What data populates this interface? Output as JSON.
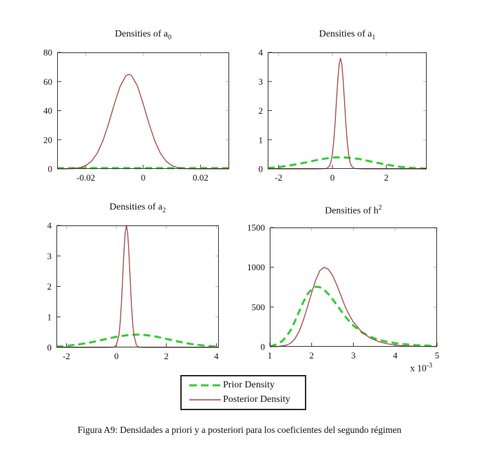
{
  "figure": {
    "caption": "Figura A9: Densidades a priori y a posteriori para los coeficientes del segundo régimen",
    "legend": {
      "items": [
        {
          "label": "Prior Density",
          "style": "dashed",
          "color": "#33cc33"
        },
        {
          "label": "Posterior Density",
          "style": "solid",
          "color": "#a04444"
        }
      ]
    }
  },
  "chart_data": [
    {
      "type": "line",
      "title": {
        "text": "Densities of a",
        "script": "0",
        "script_type": "sub"
      },
      "xlim": [
        -0.03,
        0.03
      ],
      "ylim": [
        0,
        80
      ],
      "xticks": [
        -0.02,
        0,
        0.02
      ],
      "xtick_labels": [
        "-0.02",
        "0",
        "0.02"
      ],
      "yticks": [
        0,
        20,
        40,
        60,
        80
      ],
      "ytick_labels": [
        "0",
        "20",
        "40",
        "60",
        "80"
      ],
      "grid": false,
      "series": [
        {
          "name": "Prior Density",
          "style": "dashed",
          "color": "#33cc33",
          "points": [
            [
              -0.03,
              0.5
            ],
            [
              0.03,
              0.5
            ]
          ]
        },
        {
          "name": "Posterior Density",
          "style": "solid",
          "color": "#a04444",
          "points": [
            [
              -0.03,
              0
            ],
            [
              -0.026,
              0.1
            ],
            [
              -0.024,
              0.4
            ],
            [
              -0.022,
              0.9
            ],
            [
              -0.02,
              2.3
            ],
            [
              -0.018,
              5.3
            ],
            [
              -0.016,
              10.8
            ],
            [
              -0.014,
              19.5
            ],
            [
              -0.012,
              31.4
            ],
            [
              -0.01,
              44.8
            ],
            [
              -0.008,
              56.9
            ],
            [
              -0.006,
              64.0
            ],
            [
              -0.005,
              65.0
            ],
            [
              -0.004,
              64.0
            ],
            [
              -0.002,
              56.9
            ],
            [
              0,
              44.8
            ],
            [
              0.002,
              31.4
            ],
            [
              0.004,
              19.5
            ],
            [
              0.006,
              10.8
            ],
            [
              0.008,
              5.3
            ],
            [
              0.01,
              2.3
            ],
            [
              0.012,
              0.9
            ],
            [
              0.014,
              0.3
            ],
            [
              0.016,
              0.1
            ],
            [
              0.02,
              0
            ],
            [
              0.03,
              0
            ]
          ]
        }
      ]
    },
    {
      "type": "line",
      "title": {
        "text": "Densities of a",
        "script": "1",
        "script_type": "sub"
      },
      "xlim": [
        -2.4,
        3.5
      ],
      "ylim": [
        0,
        4
      ],
      "xticks": [
        -2,
        0,
        2
      ],
      "xtick_labels": [
        "-2",
        "0",
        "2"
      ],
      "yticks": [
        0,
        1,
        2,
        3,
        4
      ],
      "ytick_labels": [
        "0",
        "1",
        "2",
        "3",
        "4"
      ],
      "grid": false,
      "series": [
        {
          "name": "Prior Density",
          "style": "dashed",
          "color": "#33cc33",
          "points": [
            [
              -2.4,
              0.03
            ],
            [
              -2,
              0.06
            ],
            [
              -1.5,
              0.13
            ],
            [
              -1,
              0.22
            ],
            [
              -0.5,
              0.32
            ],
            [
              0,
              0.39
            ],
            [
              0.3,
              0.4
            ],
            [
              0.5,
              0.39
            ],
            [
              1,
              0.34
            ],
            [
              1.5,
              0.24
            ],
            [
              2,
              0.15
            ],
            [
              2.5,
              0.07
            ],
            [
              3,
              0.03
            ],
            [
              3.5,
              0.01
            ]
          ]
        },
        {
          "name": "Posterior Density",
          "style": "solid",
          "color": "#a04444",
          "points": [
            [
              -2.4,
              0
            ],
            [
              -0.6,
              0
            ],
            [
              -0.3,
              0.01
            ],
            [
              -0.2,
              0.02
            ],
            [
              -0.1,
              0.11
            ],
            [
              -0.05,
              0.25
            ],
            [
              0,
              0.51
            ],
            [
              0.05,
              0.95
            ],
            [
              0.1,
              1.56
            ],
            [
              0.15,
              2.31
            ],
            [
              0.2,
              3.04
            ],
            [
              0.25,
              3.59
            ],
            [
              0.3,
              3.8
            ],
            [
              0.35,
              3.59
            ],
            [
              0.4,
              3.04
            ],
            [
              0.45,
              2.31
            ],
            [
              0.5,
              1.56
            ],
            [
              0.55,
              0.95
            ],
            [
              0.6,
              0.51
            ],
            [
              0.65,
              0.25
            ],
            [
              0.7,
              0.11
            ],
            [
              0.8,
              0.02
            ],
            [
              0.9,
              0.01
            ],
            [
              1.2,
              0
            ],
            [
              3.5,
              0
            ]
          ]
        }
      ]
    },
    {
      "type": "line",
      "title": {
        "text": "Densities of a",
        "script": "2",
        "script_type": "sub"
      },
      "xlim": [
        -2.4,
        4.1
      ],
      "ylim": [
        0,
        4
      ],
      "xticks": [
        -2,
        0,
        2,
        4
      ],
      "xtick_labels": [
        "-2",
        "0",
        "2",
        "4"
      ],
      "yticks": [
        0,
        1,
        2,
        3,
        4
      ],
      "ytick_labels": [
        "0",
        "1",
        "2",
        "3",
        "4"
      ],
      "grid": false,
      "series": [
        {
          "name": "Prior Density",
          "style": "dashed",
          "color": "#33cc33",
          "points": [
            [
              -2.4,
              0.025
            ],
            [
              -2,
              0.05
            ],
            [
              -1.5,
              0.1
            ],
            [
              -1,
              0.17
            ],
            [
              -0.5,
              0.26
            ],
            [
              0,
              0.35
            ],
            [
              0.5,
              0.41
            ],
            [
              0.8,
              0.42
            ],
            [
              1,
              0.42
            ],
            [
              1.5,
              0.37
            ],
            [
              2,
              0.28
            ],
            [
              2.5,
              0.19
            ],
            [
              3,
              0.11
            ],
            [
              3.5,
              0.06
            ],
            [
              4,
              0.025
            ],
            [
              4.1,
              0.022
            ]
          ]
        },
        {
          "name": "Posterior Density",
          "style": "solid",
          "color": "#a04444",
          "points": [
            [
              -2.4,
              0
            ],
            [
              -0.4,
              0
            ],
            [
              -0.1,
              0.01
            ],
            [
              0,
              0.07
            ],
            [
              0.1,
              0.4
            ],
            [
              0.15,
              0.81
            ],
            [
              0.2,
              1.44
            ],
            [
              0.25,
              2.25
            ],
            [
              0.3,
              3.1
            ],
            [
              0.35,
              3.75
            ],
            [
              0.4,
              4.0
            ],
            [
              0.45,
              3.75
            ],
            [
              0.5,
              3.1
            ],
            [
              0.55,
              2.25
            ],
            [
              0.6,
              1.44
            ],
            [
              0.65,
              0.81
            ],
            [
              0.7,
              0.4
            ],
            [
              0.8,
              0.07
            ],
            [
              0.9,
              0.01
            ],
            [
              1.1,
              0
            ],
            [
              4.1,
              0
            ]
          ]
        }
      ]
    },
    {
      "type": "line",
      "title": {
        "text": "Densities of h",
        "script": "2",
        "script_type": "sup"
      },
      "xlim": [
        1,
        5
      ],
      "ylim": [
        0,
        1500
      ],
      "xticks": [
        1,
        2,
        3,
        4,
        5
      ],
      "xtick_labels": [
        "1",
        "2",
        "3",
        "4",
        "5"
      ],
      "yticks": [
        0,
        500,
        1000,
        1500
      ],
      "ytick_labels": [
        "0",
        "500",
        "1000",
        "1500"
      ],
      "x_scale": {
        "base": "x 10",
        "exp": "-3"
      },
      "grid": false,
      "series": [
        {
          "name": "Prior Density",
          "style": "dashed",
          "color": "#33cc33",
          "points": [
            [
              1,
              8
            ],
            [
              1.1,
              18
            ],
            [
              1.2,
              38
            ],
            [
              1.3,
              72
            ],
            [
              1.4,
              130
            ],
            [
              1.5,
              210
            ],
            [
              1.6,
              320
            ],
            [
              1.7,
              440
            ],
            [
              1.8,
              560
            ],
            [
              1.9,
              660
            ],
            [
              2,
              725
            ],
            [
              2.1,
              755
            ],
            [
              2.2,
              748
            ],
            [
              2.3,
              715
            ],
            [
              2.4,
              665
            ],
            [
              2.5,
              600
            ],
            [
              2.6,
              528
            ],
            [
              2.7,
              455
            ],
            [
              2.8,
              385
            ],
            [
              2.9,
              322
            ],
            [
              3,
              265
            ],
            [
              3.2,
              182
            ],
            [
              3.4,
              126
            ],
            [
              3.6,
              88
            ],
            [
              3.8,
              62
            ],
            [
              4,
              45
            ],
            [
              4.2,
              33
            ],
            [
              4.5,
              20
            ],
            [
              5,
              10
            ]
          ]
        },
        {
          "name": "Posterior Density",
          "style": "solid",
          "color": "#a04444",
          "points": [
            [
              1,
              0
            ],
            [
              1.2,
              3
            ],
            [
              1.4,
              20
            ],
            [
              1.5,
              45
            ],
            [
              1.6,
              100
            ],
            [
              1.7,
              190
            ],
            [
              1.8,
              330
            ],
            [
              1.9,
              500
            ],
            [
              2,
              680
            ],
            [
              2.1,
              840
            ],
            [
              2.2,
              960
            ],
            [
              2.3,
              1000
            ],
            [
              2.4,
              975
            ],
            [
              2.5,
              900
            ],
            [
              2.6,
              780
            ],
            [
              2.7,
              645
            ],
            [
              2.8,
              510
            ],
            [
              2.9,
              400
            ],
            [
              3,
              310
            ],
            [
              3.2,
              185
            ],
            [
              3.4,
              110
            ],
            [
              3.6,
              65
            ],
            [
              3.8,
              38
            ],
            [
              4,
              22
            ],
            [
              4.2,
              12
            ],
            [
              4.5,
              5
            ],
            [
              5,
              1
            ]
          ]
        }
      ]
    }
  ]
}
